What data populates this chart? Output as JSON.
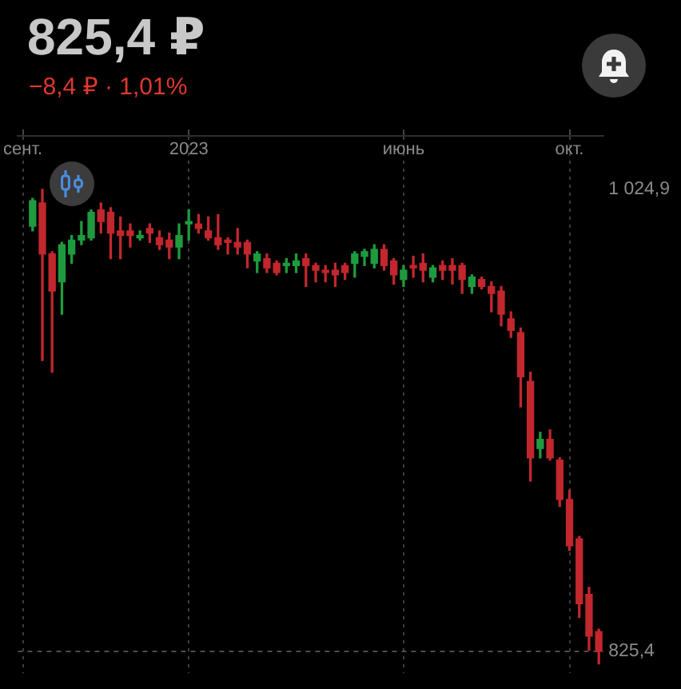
{
  "chart_data": {
    "type": "candlestick",
    "title": "825,4 ₽",
    "subtitle": "−8,4 ₽ · 1,01%",
    "categories": [
      "сент.",
      null,
      null,
      null,
      null,
      null,
      null,
      null,
      null,
      null,
      null,
      null,
      null,
      null,
      null,
      null,
      null,
      "2023",
      null,
      null,
      null,
      null,
      null,
      null,
      null,
      null,
      null,
      null,
      null,
      null,
      null,
      null,
      null,
      null,
      null,
      null,
      null,
      null,
      null,
      "июнь",
      null,
      null,
      null,
      null,
      null,
      null,
      null,
      null,
      null,
      null,
      null,
      null,
      null,
      null,
      null,
      null,
      "окт.",
      null,
      null,
      null
    ],
    "ohlc": [
      null,
      [
        1009,
        1021,
        1007,
        1020
      ],
      [
        1019,
        1024.9,
        951,
        997
      ],
      [
        997,
        998,
        946,
        981
      ],
      [
        985,
        1002,
        971,
        1001
      ],
      [
        997,
        1005,
        993,
        1003
      ],
      [
        1003,
        1011,
        1001,
        1005
      ],
      [
        1004,
        1016,
        1003,
        1015
      ],
      [
        1016,
        1019,
        1006,
        1011
      ],
      [
        1015,
        1017,
        995,
        1006
      ],
      [
        1007,
        1013,
        995,
        1005
      ],
      [
        1007,
        1010,
        1000,
        1005
      ],
      [
        1004,
        1007,
        1003,
        1005
      ],
      [
        1008,
        1010,
        1002,
        1006
      ],
      [
        1004,
        1007,
        999,
        1001
      ],
      [
        1003,
        1006,
        995,
        1000
      ],
      [
        1000,
        1010,
        995,
        1005
      ],
      [
        1010,
        1016,
        1003,
        1011
      ],
      [
        1010,
        1014,
        1006,
        1008
      ],
      [
        1007,
        1013,
        1003,
        1004
      ],
      [
        1004,
        1014,
        999,
        1001
      ],
      [
        1003,
        1004,
        997,
        1002
      ],
      [
        1002,
        1008,
        997,
        1000
      ],
      [
        1002,
        1003,
        991,
        997
      ],
      [
        994,
        998,
        989,
        997
      ],
      [
        995,
        997,
        989,
        991
      ],
      [
        993,
        994,
        988,
        989
      ],
      [
        992,
        995,
        989,
        993
      ],
      [
        992,
        997,
        989,
        994
      ],
      [
        995,
        997,
        983,
        992
      ],
      [
        992,
        993,
        985,
        990
      ],
      [
        990,
        992,
        985,
        989
      ],
      [
        990,
        993,
        983,
        988
      ],
      [
        992,
        993,
        986,
        989
      ],
      [
        993,
        998,
        987,
        997
      ],
      [
        996,
        999,
        992,
        998
      ],
      [
        993,
        1001,
        991,
        999
      ],
      [
        999,
        1001,
        990,
        992
      ],
      [
        994,
        995,
        984,
        988
      ],
      [
        986,
        992,
        983,
        990
      ],
      [
        992,
        996,
        987,
        991
      ],
      [
        993,
        997,
        985,
        990
      ],
      [
        987,
        992,
        985,
        991
      ],
      [
        992,
        994,
        986,
        990
      ],
      [
        992,
        995,
        984,
        990
      ],
      [
        992,
        993,
        980,
        986
      ],
      [
        983,
        988,
        980,
        987
      ],
      [
        986,
        987,
        982,
        983
      ],
      [
        983,
        985,
        972,
        980
      ],
      [
        981,
        983,
        966,
        971
      ],
      [
        969,
        972,
        961,
        964
      ],
      [
        963,
        965,
        931,
        944
      ],
      [
        942,
        946,
        899,
        909
      ],
      [
        913,
        920,
        909,
        917
      ],
      [
        917,
        921,
        908,
        909
      ],
      [
        908,
        909,
        888,
        891
      ],
      [
        891,
        895,
        869,
        871
      ],
      [
        874,
        875,
        840,
        846
      ],
      [
        850,
        853,
        826,
        832
      ],
      [
        834,
        835,
        820,
        825.4
      ]
    ],
    "colors": [
      null,
      "#1e9b3f",
      "#c1272d",
      "#c1272d",
      "#1e9b3f",
      "#1e9b3f",
      "#1e9b3f",
      "#1e9b3f",
      "#c1272d",
      "#c1272d",
      "#c1272d",
      "#c1272d",
      "#1e9b3f",
      "#c1272d",
      "#c1272d",
      "#c1272d",
      "#1e9b3f",
      "#1e9b3f",
      "#c1272d",
      "#c1272d",
      "#c1272d",
      "#c1272d",
      "#c1272d",
      "#c1272d",
      "#1e9b3f",
      "#c1272d",
      "#c1272d",
      "#1e9b3f",
      "#1e9b3f",
      "#c1272d",
      "#c1272d",
      "#c1272d",
      "#c1272d",
      "#c1272d",
      "#1e9b3f",
      "#1e9b3f",
      "#1e9b3f",
      "#c1272d",
      "#c1272d",
      "#1e9b3f",
      "#c1272d",
      "#c1272d",
      "#1e9b3f",
      "#c1272d",
      "#c1272d",
      "#c1272d",
      "#1e9b3f",
      "#c1272d",
      "#c1272d",
      "#c1272d",
      "#c1272d",
      "#c1272d",
      "#c1272d",
      "#1e9b3f",
      "#c1272d",
      "#c1272d",
      "#c1272d",
      "#c1272d",
      "#c1272d",
      "#c1272d"
    ],
    "ylim": [
      816,
      1048
    ],
    "yticks": [
      {
        "value": 825.4,
        "label": "825,4"
      },
      {
        "value": 1024.9,
        "label": "1 024,9"
      }
    ],
    "grid": "x",
    "ref_lines": [
      {
        "axis": "y",
        "value": 825.4,
        "line_style": "dashed",
        "color": "#4d4d4d"
      }
    ]
  }
}
